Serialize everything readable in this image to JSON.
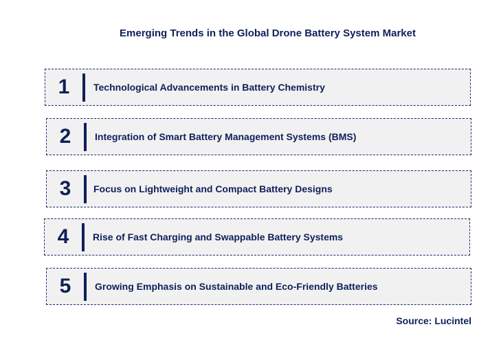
{
  "title": "Emerging Trends in the Global Drone Battery System Market",
  "trends": [
    {
      "number": "1",
      "label": "Technological Advancements in Battery Chemistry"
    },
    {
      "number": "2",
      "label": "Integration of Smart Battery Management Systems (BMS)"
    },
    {
      "number": "3",
      "label": "Focus on Lightweight and Compact Battery Designs"
    },
    {
      "number": "4",
      "label": "Rise of Fast Charging and Swappable Battery Systems"
    },
    {
      "number": "5",
      "label": "Growing Emphasis on Sustainable and Eco-Friendly Batteries"
    }
  ],
  "source": "Source: Lucintel",
  "colors": {
    "text": "#0f1f5a",
    "box_fill": "#f1f1f1"
  }
}
